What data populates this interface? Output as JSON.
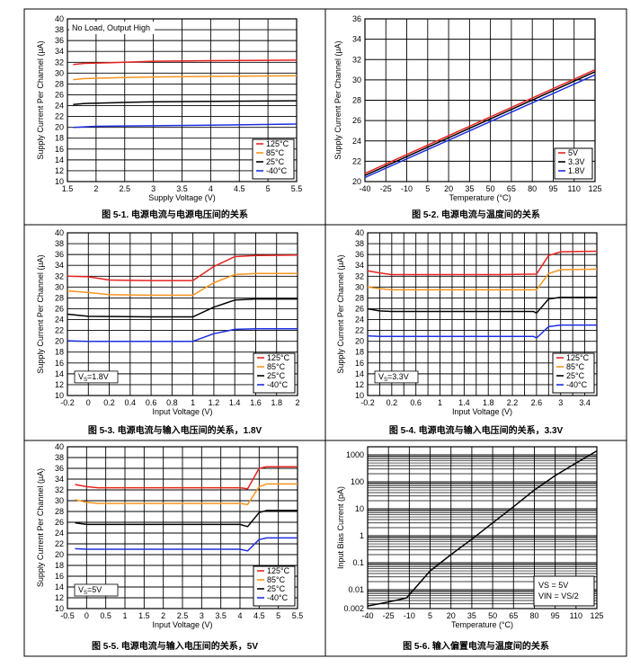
{
  "colors": {
    "red": "#e8231f",
    "orange": "#f7941d",
    "black": "#000000",
    "blue": "#1d2fe0",
    "grid": "#000000"
  },
  "chart_data": [
    {
      "id": "fig1",
      "type": "line",
      "title": "图 5-1. 电源电流与电源电压间的关系",
      "xlabel": "Supply Voltage (V)",
      "ylabel": "Supply Current Per Channel (µA)",
      "xlim": [
        1.5,
        5.5
      ],
      "ylim": [
        10,
        40
      ],
      "xticks": [
        1.5,
        2,
        2.5,
        3,
        3.5,
        4,
        4.5,
        5,
        5.5
      ],
      "xtick_labels": [
        "1.5",
        "2",
        "2.5",
        "3",
        "3.5",
        "4",
        "4.5",
        "5",
        "5.5"
      ],
      "yticks": [
        10,
        12,
        14,
        16,
        18,
        20,
        22,
        24,
        26,
        28,
        30,
        32,
        34,
        36,
        38,
        40
      ],
      "ytick_labels": [
        "10",
        "12",
        "14",
        "16",
        "18",
        "20",
        "22",
        "24",
        "26",
        "28",
        "30",
        "32",
        "34",
        "36",
        "38",
        "40"
      ],
      "annotation": "No Load, Output High",
      "legend_position": "bottom-right",
      "series": [
        {
          "name": "125°C",
          "color": "red",
          "points": [
            [
              1.6,
              31.6
            ],
            [
              1.8,
              31.8
            ],
            [
              2.5,
              32.0
            ],
            [
              3.0,
              32.2
            ],
            [
              4.0,
              32.3
            ],
            [
              5.5,
              32.4
            ]
          ]
        },
        {
          "name": "85°C",
          "color": "orange",
          "points": [
            [
              1.6,
              28.8
            ],
            [
              1.8,
              29.0
            ],
            [
              2.5,
              29.2
            ],
            [
              3.0,
              29.3
            ],
            [
              4.0,
              29.4
            ],
            [
              5.5,
              29.5
            ]
          ]
        },
        {
          "name": "25°C",
          "color": "black",
          "points": [
            [
              1.6,
              24.2
            ],
            [
              1.8,
              24.4
            ],
            [
              2.5,
              24.6
            ],
            [
              3.0,
              24.7
            ],
            [
              4.0,
              24.8
            ],
            [
              5.5,
              24.9
            ]
          ]
        },
        {
          "name": "-40°C",
          "color": "blue",
          "points": [
            [
              1.6,
              20.0
            ],
            [
              2.0,
              20.2
            ],
            [
              3.0,
              20.3
            ],
            [
              4.0,
              20.4
            ],
            [
              5.5,
              20.6
            ]
          ]
        }
      ]
    },
    {
      "id": "fig2",
      "type": "line",
      "title": "图 5-2. 电源电流与温度间的关系",
      "xlabel": "Temperature (°C)",
      "ylabel": "Supply Current Per Channel (µA)",
      "xlim": [
        -40,
        125
      ],
      "ylim": [
        20,
        36
      ],
      "xticks": [
        -40,
        -25,
        -10,
        5,
        20,
        35,
        50,
        65,
        80,
        95,
        110,
        125
      ],
      "xtick_labels": [
        "-40",
        "-25",
        "-10",
        "5",
        "20",
        "35",
        "50",
        "65",
        "80",
        "95",
        "110",
        "125"
      ],
      "yticks": [
        20,
        22,
        24,
        26,
        28,
        30,
        32,
        34,
        36
      ],
      "ytick_labels": [
        "20",
        "22",
        "24",
        "26",
        "28",
        "30",
        "32",
        "34",
        "36"
      ],
      "legend_position": "bottom-right",
      "series": [
        {
          "name": "5V",
          "color": "red",
          "points": [
            [
              -40,
              20.8
            ],
            [
              125,
              31.0
            ]
          ]
        },
        {
          "name": "3.3V",
          "color": "black",
          "points": [
            [
              -40,
              20.6
            ],
            [
              125,
              30.8
            ]
          ]
        },
        {
          "name": "1.8V",
          "color": "blue",
          "points": [
            [
              -40,
              20.4
            ],
            [
              125,
              30.5
            ]
          ]
        }
      ]
    },
    {
      "id": "fig3",
      "type": "line",
      "title": "图 5-3. 电源电流与输入电压间的关系，1.8V",
      "xlabel": "Input Voltage (V)",
      "ylabel": "Supply Current Per Channel (µA)",
      "xlim": [
        -0.2,
        2
      ],
      "ylim": [
        10,
        40
      ],
      "xticks": [
        -0.2,
        0,
        0.2,
        0.4,
        0.6,
        0.8,
        1,
        1.2,
        1.4,
        1.6,
        1.8,
        2
      ],
      "xtick_labels": [
        "-0.2",
        "0",
        "0.2",
        "0.4",
        "0.6",
        "0.8",
        "1",
        "1.2",
        "1.4",
        "1.6",
        "1.8",
        "2"
      ],
      "yticks": [
        10,
        12,
        14,
        16,
        18,
        20,
        22,
        24,
        26,
        28,
        30,
        32,
        34,
        36,
        38,
        40
      ],
      "ytick_labels": [
        "10",
        "12",
        "14",
        "16",
        "18",
        "20",
        "22",
        "24",
        "26",
        "28",
        "30",
        "32",
        "34",
        "36",
        "38",
        "40"
      ],
      "annotation": "VS=1.8V",
      "legend_position": "bottom-right",
      "series": [
        {
          "name": "125°C",
          "color": "red",
          "points": [
            [
              -0.2,
              32.0
            ],
            [
              0,
              31.9
            ],
            [
              0.2,
              31.3
            ],
            [
              0.6,
              31.2
            ],
            [
              1.0,
              31.2
            ],
            [
              1.2,
              33.8
            ],
            [
              1.4,
              35.6
            ],
            [
              1.6,
              35.8
            ],
            [
              2.0,
              35.9
            ]
          ]
        },
        {
          "name": "85°C",
          "color": "orange",
          "points": [
            [
              -0.2,
              29.3
            ],
            [
              0,
              29.0
            ],
            [
              0.2,
              28.6
            ],
            [
              0.6,
              28.5
            ],
            [
              1.0,
              28.5
            ],
            [
              1.2,
              30.8
            ],
            [
              1.4,
              32.3
            ],
            [
              1.6,
              32.5
            ],
            [
              2.0,
              32.5
            ]
          ]
        },
        {
          "name": "25°C",
          "color": "black",
          "points": [
            [
              -0.2,
              25.0
            ],
            [
              0,
              24.6
            ],
            [
              0.6,
              24.5
            ],
            [
              1.0,
              24.5
            ],
            [
              1.2,
              26.3
            ],
            [
              1.4,
              27.6
            ],
            [
              1.6,
              27.8
            ],
            [
              2.0,
              27.8
            ]
          ]
        },
        {
          "name": "-40°C",
          "color": "blue",
          "points": [
            [
              -0.2,
              20.1
            ],
            [
              0,
              20.0
            ],
            [
              0.6,
              20.0
            ],
            [
              1.0,
              20.0
            ],
            [
              1.2,
              21.4
            ],
            [
              1.4,
              22.2
            ],
            [
              1.6,
              22.3
            ],
            [
              2.0,
              22.3
            ]
          ]
        }
      ]
    },
    {
      "id": "fig4",
      "type": "line",
      "title": "图 5-4. 电源电流与输入电压间的关系，3.3V",
      "xlabel": "Input Voltage (V)",
      "ylabel": "Supply Current Per Channel (µA)",
      "xlim": [
        -0.2,
        3.6
      ],
      "ylim": [
        10,
        40
      ],
      "xticks": [
        -0.2,
        0,
        0.2,
        0.4,
        0.6,
        0.8,
        1,
        1.2,
        1.4,
        1.6,
        1.8,
        2,
        2.2,
        2.4,
        2.6,
        2.8,
        3,
        3.2,
        3.4,
        3.6
      ],
      "xtick_labels": [
        "-0.2",
        "",
        "0.2",
        "",
        "0.6",
        "",
        "1",
        "",
        "1.4",
        "",
        "1.8",
        "",
        "2.2",
        "",
        "2.6",
        "",
        "3",
        "",
        "3.4",
        ""
      ],
      "yticks": [
        10,
        12,
        14,
        16,
        18,
        20,
        22,
        24,
        26,
        28,
        30,
        32,
        34,
        36,
        38,
        40
      ],
      "ytick_labels": [
        "10",
        "12",
        "14",
        "16",
        "18",
        "20",
        "22",
        "24",
        "26",
        "28",
        "30",
        "32",
        "34",
        "36",
        "38",
        "40"
      ],
      "annotation": "VS=3.3V",
      "legend_position": "bottom-right",
      "series": [
        {
          "name": "125°C",
          "color": "red",
          "points": [
            [
              -0.2,
              33.0
            ],
            [
              0,
              32.6
            ],
            [
              0.2,
              32.3
            ],
            [
              1.0,
              32.3
            ],
            [
              2.0,
              32.3
            ],
            [
              2.6,
              32.4
            ],
            [
              2.8,
              35.8
            ],
            [
              3.0,
              36.5
            ],
            [
              3.6,
              36.6
            ]
          ]
        },
        {
          "name": "85°C",
          "color": "orange",
          "points": [
            [
              -0.2,
              30.0
            ],
            [
              0,
              29.7
            ],
            [
              0.2,
              29.5
            ],
            [
              1.0,
              29.5
            ],
            [
              2.0,
              29.5
            ],
            [
              2.6,
              29.5
            ],
            [
              2.8,
              32.5
            ],
            [
              3.0,
              33.2
            ],
            [
              3.6,
              33.3
            ]
          ]
        },
        {
          "name": "25°C",
          "color": "black",
          "points": [
            [
              -0.2,
              26.0
            ],
            [
              0,
              25.6
            ],
            [
              0.2,
              25.5
            ],
            [
              1.0,
              25.5
            ],
            [
              2.0,
              25.5
            ],
            [
              2.55,
              25.5
            ],
            [
              2.6,
              25.2
            ],
            [
              2.8,
              27.8
            ],
            [
              3.0,
              28.1
            ],
            [
              3.6,
              28.1
            ]
          ]
        },
        {
          "name": "-40°C",
          "color": "blue",
          "points": [
            [
              -0.2,
              21.0
            ],
            [
              0,
              20.9
            ],
            [
              1.0,
              20.9
            ],
            [
              2.0,
              20.9
            ],
            [
              2.55,
              20.9
            ],
            [
              2.6,
              20.6
            ],
            [
              2.8,
              22.7
            ],
            [
              3.0,
              23.0
            ],
            [
              3.6,
              23.0
            ]
          ]
        }
      ]
    },
    {
      "id": "fig5",
      "type": "line",
      "title": "图 5-5. 电源电流与输入电压间的关系，5V",
      "xlabel": "Input Voltage (V)",
      "ylabel": "Supply Current Per Channel (µA)",
      "xlim": [
        -0.5,
        5.5
      ],
      "ylim": [
        10,
        40
      ],
      "xticks": [
        -0.5,
        0,
        0.5,
        1,
        1.5,
        2,
        2.5,
        3,
        3.5,
        4,
        4.5,
        5,
        5.5
      ],
      "xtick_labels": [
        "-0.5",
        "0",
        "0.5",
        "1",
        "1.5",
        "2",
        "2.5",
        "3",
        "3.5",
        "4",
        "4.5",
        "5",
        "5.5"
      ],
      "yticks": [
        10,
        12,
        14,
        16,
        18,
        20,
        22,
        24,
        26,
        28,
        30,
        32,
        34,
        36,
        38,
        40
      ],
      "ytick_labels": [
        "10",
        "12",
        "14",
        "16",
        "18",
        "20",
        "22",
        "24",
        "26",
        "28",
        "30",
        "32",
        "34",
        "36",
        "38",
        "40"
      ],
      "annotation": "VS=5V",
      "legend_position": "bottom-right",
      "series": [
        {
          "name": "125°C",
          "color": "red",
          "points": [
            [
              -0.3,
              33.0
            ],
            [
              0,
              32.6
            ],
            [
              0.3,
              32.4
            ],
            [
              2.0,
              32.4
            ],
            [
              4.0,
              32.4
            ],
            [
              4.2,
              32.2
            ],
            [
              4.5,
              36.0
            ],
            [
              4.7,
              36.3
            ],
            [
              5.5,
              36.3
            ]
          ]
        },
        {
          "name": "85°C",
          "color": "orange",
          "points": [
            [
              -0.3,
              30.2
            ],
            [
              0,
              29.7
            ],
            [
              0.3,
              29.5
            ],
            [
              2.0,
              29.5
            ],
            [
              4.0,
              29.5
            ],
            [
              4.2,
              29.3
            ],
            [
              4.5,
              32.6
            ],
            [
              4.7,
              33.1
            ],
            [
              5.5,
              33.1
            ]
          ]
        },
        {
          "name": "25°C",
          "color": "black",
          "points": [
            [
              -0.3,
              25.9
            ],
            [
              0,
              25.6
            ],
            [
              0.3,
              25.6
            ],
            [
              2.0,
              25.6
            ],
            [
              4.0,
              25.6
            ],
            [
              4.2,
              25.2
            ],
            [
              4.5,
              27.8
            ],
            [
              4.7,
              28.2
            ],
            [
              5.5,
              28.2
            ]
          ]
        },
        {
          "name": "-40°C",
          "color": "blue",
          "points": [
            [
              -0.3,
              21.1
            ],
            [
              0,
              21.0
            ],
            [
              2.0,
              21.0
            ],
            [
              4.0,
              21.0
            ],
            [
              4.2,
              20.7
            ],
            [
              4.5,
              22.8
            ],
            [
              4.7,
              23.1
            ],
            [
              5.5,
              23.1
            ]
          ]
        }
      ]
    },
    {
      "id": "fig6",
      "type": "line",
      "scale": "log-y",
      "title": "图 5-6. 输入偏置电流与温度间的关系",
      "xlabel": "Temperature (°C)",
      "ylabel": "Input Bias Current (pA)",
      "xlim": [
        -40,
        125
      ],
      "ylim": [
        0.002,
        2000
      ],
      "xticks": [
        -40,
        -25,
        -10,
        5,
        20,
        35,
        50,
        65,
        80,
        95,
        110,
        125
      ],
      "xtick_labels": [
        "-40",
        "-25",
        "-10",
        "5",
        "20",
        "35",
        "50",
        "65",
        "80",
        "95",
        "110",
        "125"
      ],
      "yticks": [
        0.002,
        0.01,
        0.1,
        1,
        10,
        100,
        1000
      ],
      "ytick_labels": [
        "0.002",
        "0.01",
        "0.1",
        "1",
        "10",
        "100",
        "1000"
      ],
      "annotation_lines": [
        "VS = 5V",
        "VIN = VS/2"
      ],
      "series": [
        {
          "name": "Input Bias Current",
          "color": "black",
          "points": [
            [
              -40,
              0.0025
            ],
            [
              -25,
              0.0035
            ],
            [
              -12,
              0.005
            ],
            [
              5,
              0.05
            ],
            [
              20,
              0.2
            ],
            [
              35,
              0.75
            ],
            [
              50,
              3.0
            ],
            [
              65,
              12
            ],
            [
              80,
              50
            ],
            [
              95,
              170
            ],
            [
              110,
              500
            ],
            [
              125,
              1400
            ]
          ]
        }
      ]
    }
  ]
}
